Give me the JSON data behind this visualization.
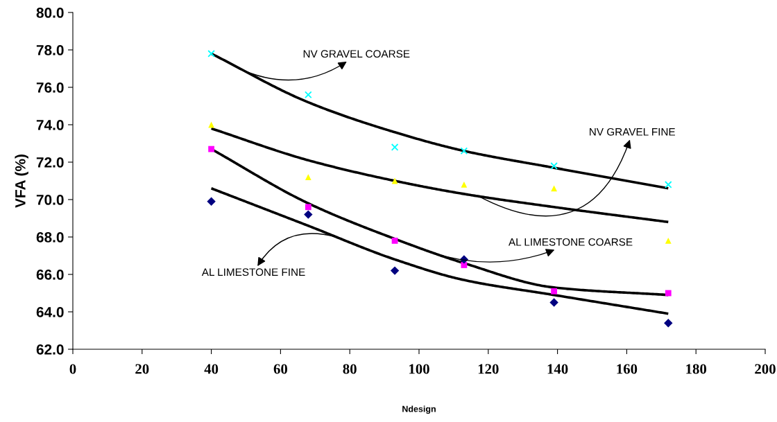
{
  "chart_data": {
    "type": "scatter",
    "xlabel": "Ndesign",
    "ylabel": "VFA (%)",
    "xlim": [
      0,
      200
    ],
    "xticks": [
      0,
      20,
      40,
      60,
      80,
      100,
      120,
      140,
      160,
      180,
      200
    ],
    "ylim": [
      62,
      80
    ],
    "yticks": [
      {
        "value": 62,
        "label": "62.0"
      },
      {
        "value": 64,
        "label": "64.0"
      },
      {
        "value": 66,
        "label": "66.0"
      },
      {
        "value": 68,
        "label": "68.0"
      },
      {
        "value": 70,
        "label": "70.0"
      },
      {
        "value": 72,
        "label": "72.0"
      },
      {
        "value": 74,
        "label": "74.0"
      },
      {
        "value": 76,
        "label": "76.0"
      },
      {
        "value": 78,
        "label": "78.0"
      },
      {
        "value": 80,
        "label": "80.0"
      }
    ],
    "grid": false,
    "legend": false,
    "x": [
      40,
      68,
      93,
      113,
      139,
      172
    ],
    "series": [
      {
        "marker": "cross",
        "color": "#00ffff",
        "values": [
          77.8,
          75.6,
          72.8,
          72.6,
          71.8,
          70.8
        ]
      },
      {
        "marker": "triangle",
        "color": "#ffff00",
        "values": [
          74.0,
          71.2,
          71.0,
          70.8,
          70.6,
          67.8
        ]
      },
      {
        "marker": "square",
        "color": "#ff00ff",
        "values": [
          72.7,
          69.6,
          67.8,
          66.5,
          65.1,
          65.0
        ]
      },
      {
        "marker": "diamond",
        "color": "#000080",
        "values": [
          69.9,
          69.2,
          66.2,
          66.8,
          64.5,
          63.4
        ]
      },
      {
        "type": "line",
        "marker": "none",
        "color": "#000000",
        "x": [
          40,
          68,
          93,
          113,
          139,
          172
        ],
        "values": [
          77.8,
          75.2,
          73.6,
          72.6,
          71.7,
          70.6
        ]
      },
      {
        "type": "line",
        "marker": "none",
        "color": "#000000",
        "x": [
          40,
          68,
          93,
          113,
          139,
          172
        ],
        "values": [
          73.8,
          72.1,
          71.0,
          70.3,
          69.6,
          68.8
        ]
      },
      {
        "type": "line",
        "marker": "none",
        "color": "#000000",
        "x": [
          40,
          68,
          93,
          113,
          139,
          172
        ],
        "values": [
          72.7,
          69.8,
          67.9,
          66.6,
          65.3,
          64.9
        ]
      },
      {
        "type": "line",
        "marker": "none",
        "color": "#000000",
        "x": [
          40,
          68,
          93,
          113,
          139,
          172
        ],
        "values": [
          70.6,
          68.6,
          66.8,
          65.7,
          64.9,
          63.9
        ]
      }
    ],
    "annotations": [
      {
        "text": "NV GRAVEL COARSE",
        "x": 48,
        "y": 77.0
      },
      {
        "text": "NV GRAVEL FINE",
        "x": 117,
        "y": 70.2
      },
      {
        "text": "AL LIMESTONE COARSE",
        "x": 103,
        "y": 67.2
      },
      {
        "text": "AL LIMESTONE FINE",
        "x": 76,
        "y": 68.0
      }
    ]
  }
}
